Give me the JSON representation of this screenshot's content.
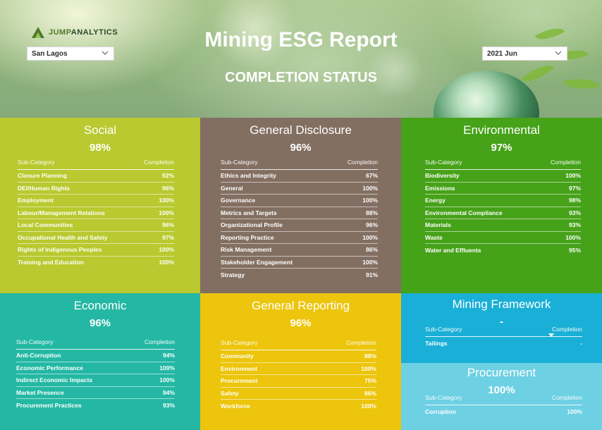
{
  "header": {
    "logo_prefix": "JUMP",
    "logo_suffix": "ANALYTICS",
    "title": "Mining ESG Report",
    "subtitle": "COMPLETION STATUS",
    "location_filter": "San Lagos",
    "date_filter": "2021 Jun"
  },
  "table_headers": {
    "sub_category": "Sub-Category",
    "completion": "Completion"
  },
  "social": {
    "title": "Social",
    "pct": "98%",
    "rows": [
      {
        "name": "Closure Planning",
        "value": "92%"
      },
      {
        "name": "DEI/Human Rights",
        "value": "96%"
      },
      {
        "name": "Employment",
        "value": "100%"
      },
      {
        "name": "Labour/Management Relations",
        "value": "100%"
      },
      {
        "name": "Local Communities",
        "value": "96%"
      },
      {
        "name": "Occupational Health and Safety",
        "value": "97%"
      },
      {
        "name": "Rights of Indigenous Peoples",
        "value": "100%"
      },
      {
        "name": "Training and Education",
        "value": "100%"
      }
    ]
  },
  "general_disclosure": {
    "title": "General Disclosure",
    "pct": "96%",
    "rows": [
      {
        "name": "Ethics and Integrity",
        "value": "67%"
      },
      {
        "name": "General",
        "value": "100%"
      },
      {
        "name": "Governance",
        "value": "100%"
      },
      {
        "name": "Metrics and Targets",
        "value": "88%"
      },
      {
        "name": "Organizational Profile",
        "value": "96%"
      },
      {
        "name": "Reporting Practice",
        "value": "100%"
      },
      {
        "name": "Risk Management",
        "value": "86%"
      },
      {
        "name": "Stakeholder Engagement",
        "value": "100%"
      },
      {
        "name": "Strategy",
        "value": "91%"
      }
    ]
  },
  "environmental": {
    "title": "Environmental",
    "pct": "97%",
    "rows": [
      {
        "name": "Biodiversity",
        "value": "100%"
      },
      {
        "name": "Emissions",
        "value": "97%"
      },
      {
        "name": "Energy",
        "value": "98%"
      },
      {
        "name": "Environmental Compliance",
        "value": "93%"
      },
      {
        "name": "Materials",
        "value": "93%"
      },
      {
        "name": "Waste",
        "value": "100%"
      },
      {
        "name": "Water and Effluents",
        "value": "95%"
      }
    ]
  },
  "economic": {
    "title": "Economic",
    "pct": "96%",
    "rows": [
      {
        "name": "Anti-Corruption",
        "value": "94%"
      },
      {
        "name": "Economic Performance",
        "value": "100%"
      },
      {
        "name": "Indirect Economic Impacts",
        "value": "100%"
      },
      {
        "name": "Market Presence",
        "value": "94%"
      },
      {
        "name": "Procurement Practices",
        "value": "93%"
      }
    ]
  },
  "general_reporting": {
    "title": "General Reporting",
    "pct": "96%",
    "rows": [
      {
        "name": "Community",
        "value": "88%"
      },
      {
        "name": "Environment",
        "value": "100%"
      },
      {
        "name": "Procurement",
        "value": "75%"
      },
      {
        "name": "Safety",
        "value": "86%"
      },
      {
        "name": "Workforce",
        "value": "100%"
      }
    ]
  },
  "mining_framework": {
    "title": "Mining Framework",
    "pct": "-",
    "rows": [
      {
        "name": "Tailings",
        "value": "-"
      }
    ]
  },
  "procurement": {
    "title": "Procurement",
    "pct": "100%",
    "rows": [
      {
        "name": "Corruption",
        "value": "100%"
      }
    ]
  },
  "colors": {
    "social": "#b9c92f",
    "general_disclosure": "#836f62",
    "environmental": "#46a219",
    "economic": "#24b8a4",
    "general_reporting": "#ecc50c",
    "mining_framework": "#1aafd6",
    "procurement": "#6ed0e3"
  }
}
